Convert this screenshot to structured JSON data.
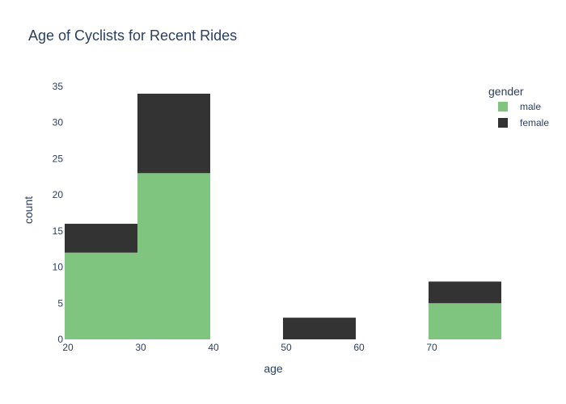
{
  "chart_data": {
    "type": "bar",
    "subtype": "stacked-histogram",
    "title": "Age of Cyclists for Recent Rides",
    "xlabel": "age",
    "ylabel": "count",
    "xlim": [
      20,
      80
    ],
    "ylim": [
      0,
      35
    ],
    "x_ticks": [
      "20",
      "30",
      "40",
      "50",
      "60",
      "70"
    ],
    "x_tick_values": [
      20,
      30,
      40,
      50,
      60,
      70
    ],
    "y_ticks": [
      "0",
      "5",
      "10",
      "15",
      "20",
      "25",
      "30",
      "35"
    ],
    "y_tick_values": [
      0,
      5,
      10,
      15,
      20,
      25,
      30,
      35
    ],
    "bins": [
      [
        20,
        30
      ],
      [
        30,
        40
      ],
      [
        40,
        50
      ],
      [
        50,
        60
      ],
      [
        60,
        70
      ],
      [
        70,
        80
      ]
    ],
    "legend": {
      "title": "gender",
      "placement": "top-right"
    },
    "series": [
      {
        "name": "male",
        "color": "#7fc47f",
        "values": [
          12,
          23,
          0,
          0,
          0,
          5
        ]
      },
      {
        "name": "female",
        "color": "#333333",
        "values": [
          4,
          11,
          0,
          3,
          0,
          3
        ]
      }
    ]
  }
}
